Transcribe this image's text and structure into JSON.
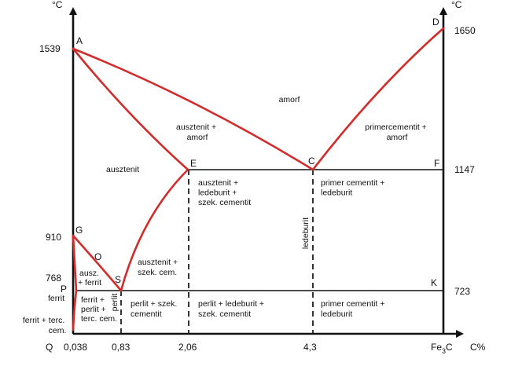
{
  "diagram": {
    "axes": {
      "left_unit": "°C",
      "right_unit": "°C",
      "x_unit": "C%",
      "origin_label": "Q",
      "x_end_label": {
        "base": "Fe",
        "sub": "3",
        "tail": "C"
      }
    },
    "temperature_ticks": {
      "t1539": "1539",
      "t910": "910",
      "t768": "768",
      "t1650": "1650",
      "t1147": "1147",
      "t723": "723"
    },
    "carbon_ticks": {
      "c0038": "0,038",
      "c083": "0,83",
      "c206": "2,06",
      "c43": "4,3"
    },
    "points": {
      "A": "A",
      "D": "D",
      "E": "E",
      "C": "C",
      "F": "F",
      "G": "G",
      "O": "O",
      "S": "S",
      "P": "P",
      "K": "K"
    },
    "regions": {
      "amorf": [
        "amorf"
      ],
      "ausztenit_amorf": [
        "ausztenit +",
        "amorf"
      ],
      "primercementit_amorf": [
        "primercementit +",
        "amorf"
      ],
      "ausztenit": [
        "ausztenit"
      ],
      "ausztenit_ledeburit": [
        "ausztenit +",
        "ledeburit +",
        "szek. cementit"
      ],
      "primer_cementit_ledeburit_upper": [
        "primer cementit +",
        "ledeburit"
      ],
      "ledeburit_vertical": [
        "ledeburit"
      ],
      "ausz_ferrit": [
        "ausz.",
        "+ ferrit"
      ],
      "ausztenit_szek": [
        "ausztenit +",
        "szek. cem."
      ],
      "ferrit": [
        "ferrit"
      ],
      "ferrit_perlit": [
        "ferrit +",
        "perlit +",
        "terc. cem."
      ],
      "perlit_vertical": [
        "perlit"
      ],
      "perlit_szek": [
        "perlit + szek.",
        "cementit"
      ],
      "perlit_ledeburit": [
        "perlit + ledeburit +",
        "szek. cementit"
      ],
      "primer_cementit_ledeburit_lower": [
        "primer cementit +",
        "ledeburit"
      ],
      "ferrit_terc": [
        "ferrit + terc.",
        "cem."
      ]
    },
    "colors": {
      "phase_lines": "#d42a2a",
      "axes": "#111111"
    }
  }
}
